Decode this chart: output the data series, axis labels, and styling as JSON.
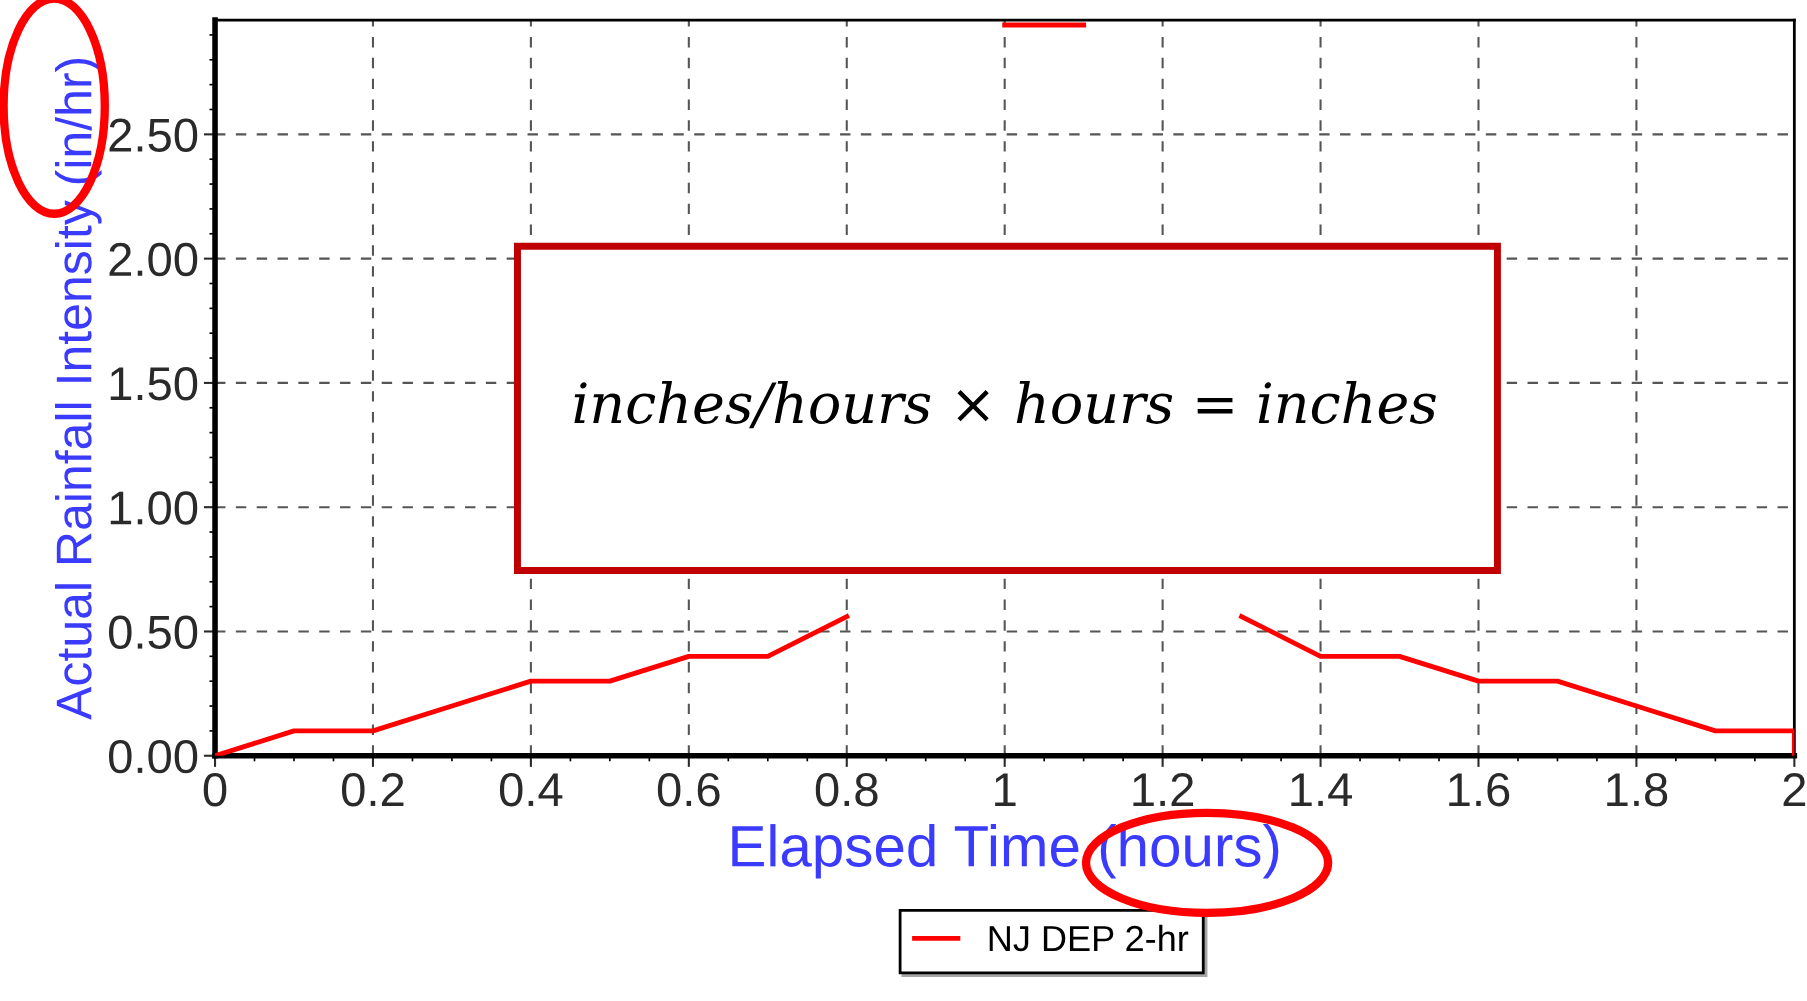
{
  "chart_data": {
    "type": "line",
    "xlabel": "Elapsed Time (hours)",
    "ylabel": "Actual Rainfall Intensity (in/hr)",
    "x": [
      0,
      0.1,
      0.2,
      0.3,
      0.4,
      0.5,
      0.6,
      0.7,
      0.8,
      0.9,
      1.0,
      1.1,
      1.2,
      1.3,
      1.4,
      1.5,
      1.6,
      1.7,
      1.8,
      1.9,
      2.0,
      2.0
    ],
    "series": [
      {
        "name": "NJ DEP 2-hr",
        "color": "#ff0000",
        "values": [
          0,
          0.1,
          0.1,
          0.2,
          0.3,
          0.3,
          0.4,
          0.4,
          0.56,
          null,
          2.94,
          2.94,
          null,
          0.56,
          0.4,
          0.4,
          0.3,
          0.3,
          0.2,
          0.1,
          0.1,
          0
        ]
      }
    ],
    "xlim": [
      0,
      2
    ],
    "xticks": [
      0,
      0.2,
      0.4,
      0.6,
      0.8,
      1,
      1.2,
      1.4,
      1.6,
      1.8,
      2
    ],
    "ylim": [
      0,
      2.96
    ],
    "yticks": [
      {
        "value": 0,
        "label": "0.00"
      },
      {
        "value": 0.5,
        "label": "0.50"
      },
      {
        "value": 1,
        "label": "1.00"
      },
      {
        "value": 1.5,
        "label": "1.50"
      },
      {
        "value": 2,
        "label": "2.00"
      },
      {
        "value": 2.5,
        "label": "2.50"
      }
    ],
    "annotations": [
      "inches/hours × hours = inches"
    ],
    "grid": true,
    "legend": "bottom",
    "marker": "none",
    "line_style": "solid"
  }
}
